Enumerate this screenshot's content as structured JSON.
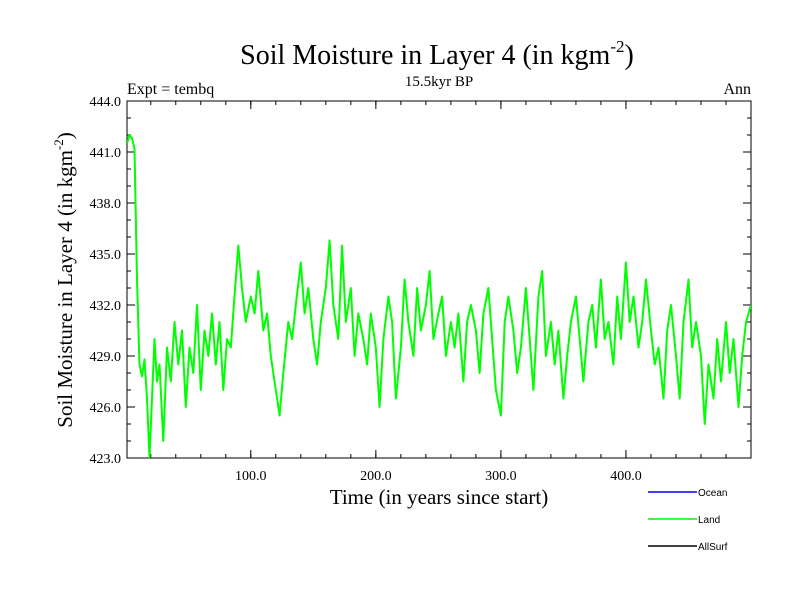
{
  "chart_data": {
    "type": "line",
    "title": "Soil Moisture in Layer 4 (in kgm",
    "title_exponent": "-2",
    "title_close": ")",
    "subtitle": "15.5kyr BP",
    "left_label": "Expt = tembq",
    "right_label": "Ann",
    "xlabel": "Time (in years since start)",
    "ylabel": "Soil Moisture in Layer 4 (in kgm",
    "ylabel_exponent": "-2",
    "ylabel_close": ")",
    "xlim": [
      1,
      500
    ],
    "ylim": [
      423.0,
      444.0
    ],
    "x_ticks": [
      "100.0",
      "200.0",
      "300.0",
      "400.0"
    ],
    "y_ticks": [
      "423.0",
      "426.0",
      "429.0",
      "432.0",
      "435.0",
      "438.0",
      "441.0",
      "444.0"
    ],
    "legend": [
      {
        "name": "Ocean",
        "color": "#0000ff"
      },
      {
        "name": "Land",
        "color": "#00ff00"
      },
      {
        "name": "AllSurf",
        "color": "#000000"
      }
    ],
    "series": [
      {
        "name": "Land",
        "color": "#00ff00",
        "x": [
          1,
          3,
          5,
          7,
          9,
          11,
          13,
          15,
          17,
          19,
          21,
          23,
          25,
          27,
          30,
          33,
          36,
          39,
          42,
          45,
          48,
          51,
          54,
          57,
          60,
          63,
          66,
          69,
          72,
          75,
          78,
          81,
          84,
          87,
          90,
          93,
          96,
          100,
          103,
          106,
          110,
          113,
          116,
          120,
          123,
          126,
          130,
          133,
          136,
          140,
          143,
          146,
          150,
          153,
          156,
          160,
          163,
          166,
          170,
          173,
          176,
          180,
          183,
          186,
          190,
          193,
          196,
          200,
          203,
          206,
          210,
          213,
          216,
          220,
          223,
          226,
          230,
          233,
          236,
          240,
          243,
          246,
          250,
          253,
          256,
          260,
          263,
          266,
          270,
          273,
          276,
          280,
          283,
          286,
          290,
          293,
          296,
          300,
          303,
          306,
          310,
          313,
          316,
          320,
          323,
          326,
          330,
          333,
          336,
          340,
          343,
          346,
          350,
          353,
          356,
          360,
          363,
          366,
          370,
          373,
          376,
          380,
          383,
          386,
          390,
          393,
          396,
          400,
          403,
          406,
          410,
          413,
          416,
          420,
          423,
          426,
          430,
          433,
          436,
          440,
          443,
          446,
          450,
          453,
          456,
          460,
          463,
          466,
          470,
          473,
          476,
          480,
          483,
          486,
          490,
          493,
          496,
          500
        ],
        "values": [
          441.5,
          442.0,
          441.8,
          441.2,
          433.5,
          428.5,
          427.8,
          428.8,
          426.5,
          423.0,
          426.5,
          430.0,
          427.5,
          428.5,
          424.0,
          429.5,
          427.5,
          431.0,
          428.5,
          430.5,
          426.0,
          429.5,
          428.0,
          432.0,
          427.0,
          430.5,
          429.0,
          431.5,
          428.5,
          431.0,
          427.0,
          430.0,
          429.5,
          432.5,
          435.5,
          433.0,
          431.0,
          432.5,
          431.5,
          434.0,
          430.5,
          431.5,
          429.0,
          427.0,
          425.5,
          428.0,
          431.0,
          430.0,
          432.0,
          434.5,
          431.5,
          433.0,
          430.0,
          428.5,
          431.0,
          433.0,
          435.8,
          432.0,
          430.0,
          435.5,
          431.0,
          433.0,
          429.0,
          431.5,
          430.0,
          428.5,
          431.5,
          429.5,
          426.0,
          430.0,
          432.5,
          431.0,
          426.5,
          429.5,
          433.5,
          431.0,
          429.0,
          433.0,
          430.5,
          432.0,
          434.0,
          430.0,
          431.5,
          432.5,
          429.0,
          431.0,
          429.5,
          431.5,
          427.5,
          431.0,
          432.0,
          430.5,
          428.0,
          431.5,
          433.0,
          430.0,
          427.0,
          425.5,
          431.0,
          432.5,
          430.5,
          428.0,
          429.5,
          433.0,
          430.0,
          427.0,
          432.5,
          434.0,
          429.0,
          431.0,
          428.5,
          430.5,
          426.5,
          429.0,
          431.0,
          432.5,
          430.0,
          427.5,
          431.0,
          432.0,
          429.5,
          433.5,
          430.0,
          431.0,
          428.5,
          432.5,
          430.0,
          434.5,
          431.0,
          432.5,
          429.5,
          431.0,
          433.5,
          430.5,
          428.5,
          429.5,
          426.5,
          430.5,
          432.0,
          429.0,
          426.5,
          431.0,
          433.5,
          429.5,
          431.0,
          429.0,
          425.0,
          428.5,
          426.5,
          430.0,
          427.5,
          431.0,
          428.0,
          430.0,
          426.0,
          429.0,
          431.0,
          432.0
        ]
      }
    ]
  }
}
